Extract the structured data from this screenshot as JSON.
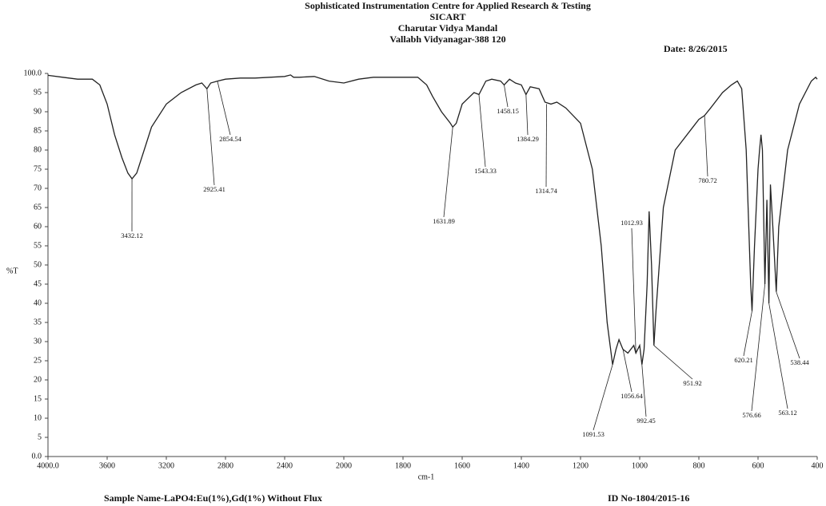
{
  "chart_data": {
    "type": "line",
    "title": [
      "Sophisticated Instrumentation Centre for Applied Research & Testing",
      "SICART",
      "Charutar Vidya Mandal",
      "Vallabh Vidyanagar-388 120"
    ],
    "date": "Date: 8/26/2015",
    "xlabel": "cm-1",
    "ylabel": "%T",
    "sample": "Sample Name-LaPO4:Eu(1%),Gd(1%) Without Flux",
    "id": "ID No-1804/2015-16",
    "color": "#222222",
    "xlim": [
      4000,
      400
    ],
    "ylim": [
      0,
      100
    ],
    "xticks": [
      {
        "value": 4000,
        "label": "4000.0"
      },
      3600,
      3200,
      2800,
      2400,
      2000,
      1800,
      1600,
      1400,
      1200,
      1000,
      800,
      600,
      400
    ],
    "yticks": [
      {
        "value": 0,
        "label": "0.0"
      },
      5,
      10,
      15,
      20,
      25,
      30,
      35,
      40,
      45,
      50,
      55,
      60,
      65,
      70,
      75,
      80,
      85,
      90,
      95,
      {
        "value": 100,
        "label": "100.0"
      }
    ],
    "x": [
      4000,
      3900,
      3800,
      3700,
      3650,
      3600,
      3550,
      3500,
      3460,
      3432.12,
      3400,
      3350,
      3300,
      3200,
      3100,
      3000,
      2960,
      2925.41,
      2900,
      2854.54,
      2800,
      2700,
      2600,
      2500,
      2400,
      2360,
      2340,
      2300,
      2200,
      2100,
      2000,
      1950,
      1900,
      1850,
      1800,
      1750,
      1720,
      1700,
      1670,
      1640,
      1631.89,
      1620,
      1600,
      1560,
      1543.33,
      1520,
      1500,
      1470,
      1458.15,
      1440,
      1420,
      1400,
      1384.29,
      1370,
      1340,
      1320,
      1300,
      1280,
      1250,
      1200,
      1160,
      1130,
      1110,
      1091.53,
      1080,
      1070,
      1056.64,
      1040,
      1020,
      1012.93,
      1000,
      992.45,
      985,
      975,
      968,
      960,
      951.92,
      945,
      920,
      880,
      820,
      800,
      780.72,
      760,
      720,
      690,
      670,
      655,
      640,
      625,
      620.21,
      612,
      600,
      595,
      590,
      585,
      576.66,
      570,
      563.12,
      558,
      550,
      538.44,
      530,
      500,
      460,
      420,
      405,
      400
    ],
    "values": [
      99.5,
      99,
      98.5,
      98.5,
      97,
      92,
      84,
      78,
      74,
      72.5,
      74,
      80,
      86,
      92,
      95,
      97,
      97.5,
      96,
      97.5,
      98,
      98.5,
      98.8,
      98.8,
      99,
      99.2,
      99.6,
      99,
      99,
      99.2,
      98,
      97.5,
      98.5,
      99,
      99,
      99,
      99,
      97,
      94,
      90,
      87,
      86,
      87,
      92,
      95,
      94.5,
      98,
      98.5,
      98,
      97,
      98.5,
      97.5,
      97,
      94.5,
      96.5,
      96,
      92.5,
      92,
      92.5,
      91,
      87,
      75,
      55,
      35,
      24,
      28,
      30.5,
      28,
      27,
      29,
      27,
      29,
      24,
      28,
      45,
      64,
      50,
      29,
      38,
      65,
      80,
      86,
      88,
      89,
      91,
      95,
      97,
      98,
      96,
      80,
      45,
      38,
      55,
      75,
      80,
      84,
      80,
      45,
      67,
      40,
      71,
      60,
      43,
      60,
      80,
      92,
      98,
      99,
      98.5
    ],
    "peaks": [
      {
        "x": 3432.12,
        "y": 72.5
      },
      {
        "x": 2925.41,
        "y": 96
      },
      {
        "x": 2854.54,
        "y": 98
      },
      {
        "x": 1631.89,
        "y": 86
      },
      {
        "x": 1543.33,
        "y": 94.5
      },
      {
        "x": 1458.15,
        "y": 97
      },
      {
        "x": 1384.29,
        "y": 94.5
      },
      {
        "x": 1314.74,
        "y": 92
      },
      {
        "x": 1091.53,
        "y": 24
      },
      {
        "x": 1056.64,
        "y": 28
      },
      {
        "x": 1012.93,
        "y": 27
      },
      {
        "x": 992.45,
        "y": 24
      },
      {
        "x": 951.92,
        "y": 29
      },
      {
        "x": 780.72,
        "y": 89
      },
      {
        "x": 620.21,
        "y": 38
      },
      {
        "x": 576.66,
        "y": 45
      },
      {
        "x": 563.12,
        "y": 40
      },
      {
        "x": 538.44,
        "y": 43
      }
    ]
  }
}
